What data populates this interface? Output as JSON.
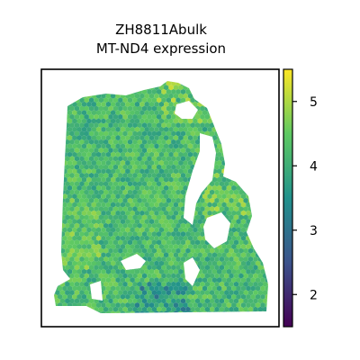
{
  "chart_data": {
    "type": "scatter",
    "title_lines": [
      "ZH8811Abulk",
      "MT-ND4 expression"
    ],
    "xlabel": "",
    "ylabel": "",
    "colorbar": {
      "colormap": "viridis",
      "vmin": 1.5,
      "vmax": 5.5,
      "ticks": [
        2,
        3,
        4,
        5
      ],
      "tick_labels": [
        "2",
        "3",
        "4",
        "5"
      ]
    },
    "axes_frame": true,
    "grid": false,
    "marker": "hexagon",
    "series": [
      {
        "description_note": "",
        "dominant_value": 4.2,
        "value_range": [
          1.6,
          5.4
        ]
      }
    ]
  },
  "colors": {
    "background": "#ffffff",
    "frame": "#000000",
    "colormap_stops": [
      "#440154",
      "#3b528b",
      "#21918c",
      "#5ec962",
      "#fde725"
    ]
  }
}
